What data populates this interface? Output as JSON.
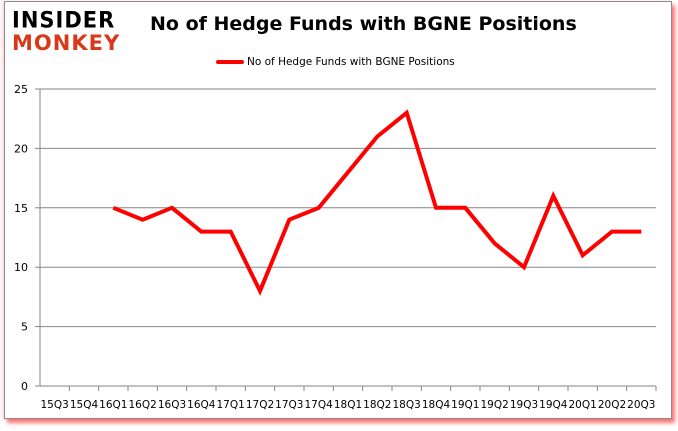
{
  "logo": {
    "line1": "INSIDER",
    "line2": "MONKEY"
  },
  "colors": {
    "series": "#ff0000",
    "grid": "#868686",
    "logo_accent": "#d63a1a"
  },
  "chart_data": {
    "type": "line",
    "title": "No of Hedge Funds with BGNE Positions",
    "xlabel": "",
    "ylabel": "",
    "ylim": [
      0,
      25
    ],
    "yticks": [
      0,
      5,
      10,
      15,
      20,
      25
    ],
    "grid": true,
    "legend_position": "top",
    "categories": [
      "15Q3",
      "15Q4",
      "16Q1",
      "16Q2",
      "16Q3",
      "16Q4",
      "17Q1",
      "17Q2",
      "17Q3",
      "17Q4",
      "18Q1",
      "18Q2",
      "18Q3",
      "18Q4",
      "19Q1",
      "19Q2",
      "19Q3",
      "19Q4",
      "20Q1",
      "20Q2",
      "20Q3"
    ],
    "series": [
      {
        "name": "No of Hedge Funds with BGNE Positions",
        "color": "#ff0000",
        "values": [
          null,
          null,
          15,
          14,
          15,
          13,
          13,
          8,
          14,
          15,
          18,
          21,
          23,
          15,
          15,
          12,
          10,
          16,
          11,
          13,
          13
        ]
      }
    ]
  }
}
